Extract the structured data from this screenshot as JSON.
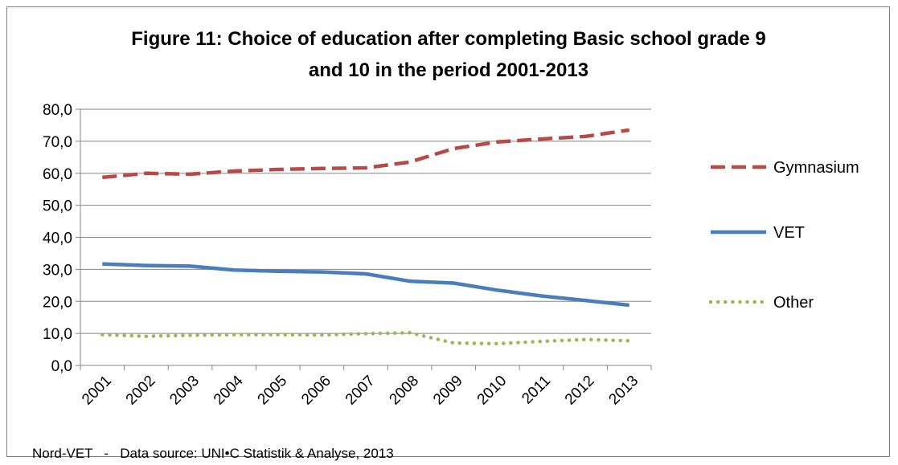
{
  "chart_data": {
    "type": "line",
    "title_lines": [
      "Figure 11: Choice of education after completing Basic school grade 9",
      "and 10 in the period 2001-2013"
    ],
    "x": [
      "2001",
      "2002",
      "2003",
      "2004",
      "2005",
      "2006",
      "2007",
      "2008",
      "2009",
      "2010",
      "2011",
      "2012",
      "2013"
    ],
    "ylim": [
      0,
      80
    ],
    "yticks": [
      "0,0",
      "10,0",
      "20,0",
      "30,0",
      "40,0",
      "50,0",
      "60,0",
      "70,0",
      "80,0"
    ],
    "grid": true,
    "legend_position": "right",
    "series": [
      {
        "name": "Gymnasium",
        "color": "#b64a47",
        "style": "dashed",
        "values": [
          58.7,
          60.0,
          59.7,
          60.7,
          61.2,
          61.5,
          61.7,
          63.5,
          67.7,
          69.8,
          70.7,
          71.5,
          73.5
        ]
      },
      {
        "name": "VET",
        "color": "#4a7ebb",
        "style": "solid",
        "values": [
          31.7,
          31.2,
          31.0,
          29.8,
          29.4,
          29.2,
          28.6,
          26.3,
          25.7,
          23.5,
          21.7,
          20.3,
          18.8
        ]
      },
      {
        "name": "Other",
        "color": "#98b954",
        "style": "dotted",
        "values": [
          9.6,
          9.1,
          9.4,
          9.6,
          9.6,
          9.5,
          9.9,
          10.2,
          7.0,
          6.8,
          7.5,
          8.1,
          7.7
        ]
      }
    ]
  },
  "footer": "Nord-VET   -   Data source: UNI•C Statistik & Analyse, 2013"
}
